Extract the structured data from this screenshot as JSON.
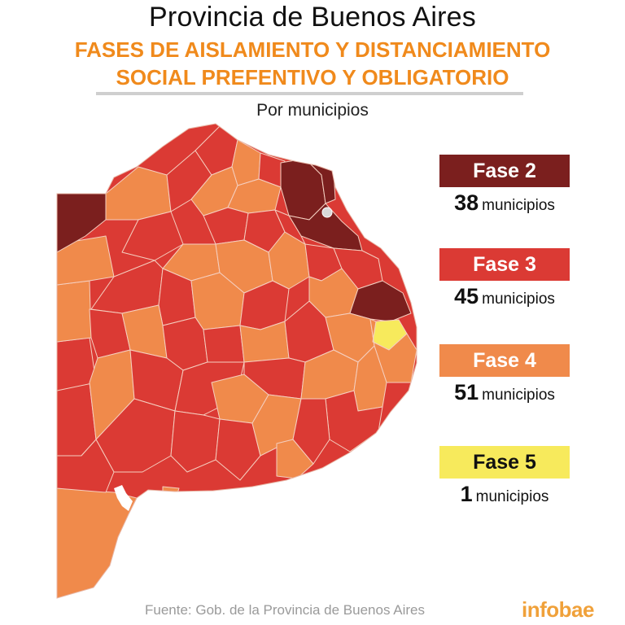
{
  "title": "Provincia de Buenos Aires",
  "subtitle_line1": "FASES DE AISLAMIENTO Y DISTANCIAMIENTO",
  "subtitle_line2": "SOCIAL PREFENTIVO Y OBLIGATORIO",
  "caption": "Por municipios",
  "legend": [
    {
      "label": "Fase 2",
      "count": "38",
      "unit": "municipios",
      "color": "#7b1f1e",
      "text_color": "#ffffff"
    },
    {
      "label": "Fase 3",
      "count": "45",
      "unit": "municipios",
      "color": "#db3a34",
      "text_color": "#ffffff"
    },
    {
      "label": "Fase 4",
      "count": "51",
      "unit": "municipios",
      "color": "#f08a4b",
      "text_color": "#ffffff"
    },
    {
      "label": "Fase 5",
      "count": "1",
      "unit": "municipios",
      "color": "#f7ea5c",
      "text_color": "#111111"
    }
  ],
  "source": "Fuente: Gob. de la Provincia de Buenos Aires",
  "logo": "infobae"
}
